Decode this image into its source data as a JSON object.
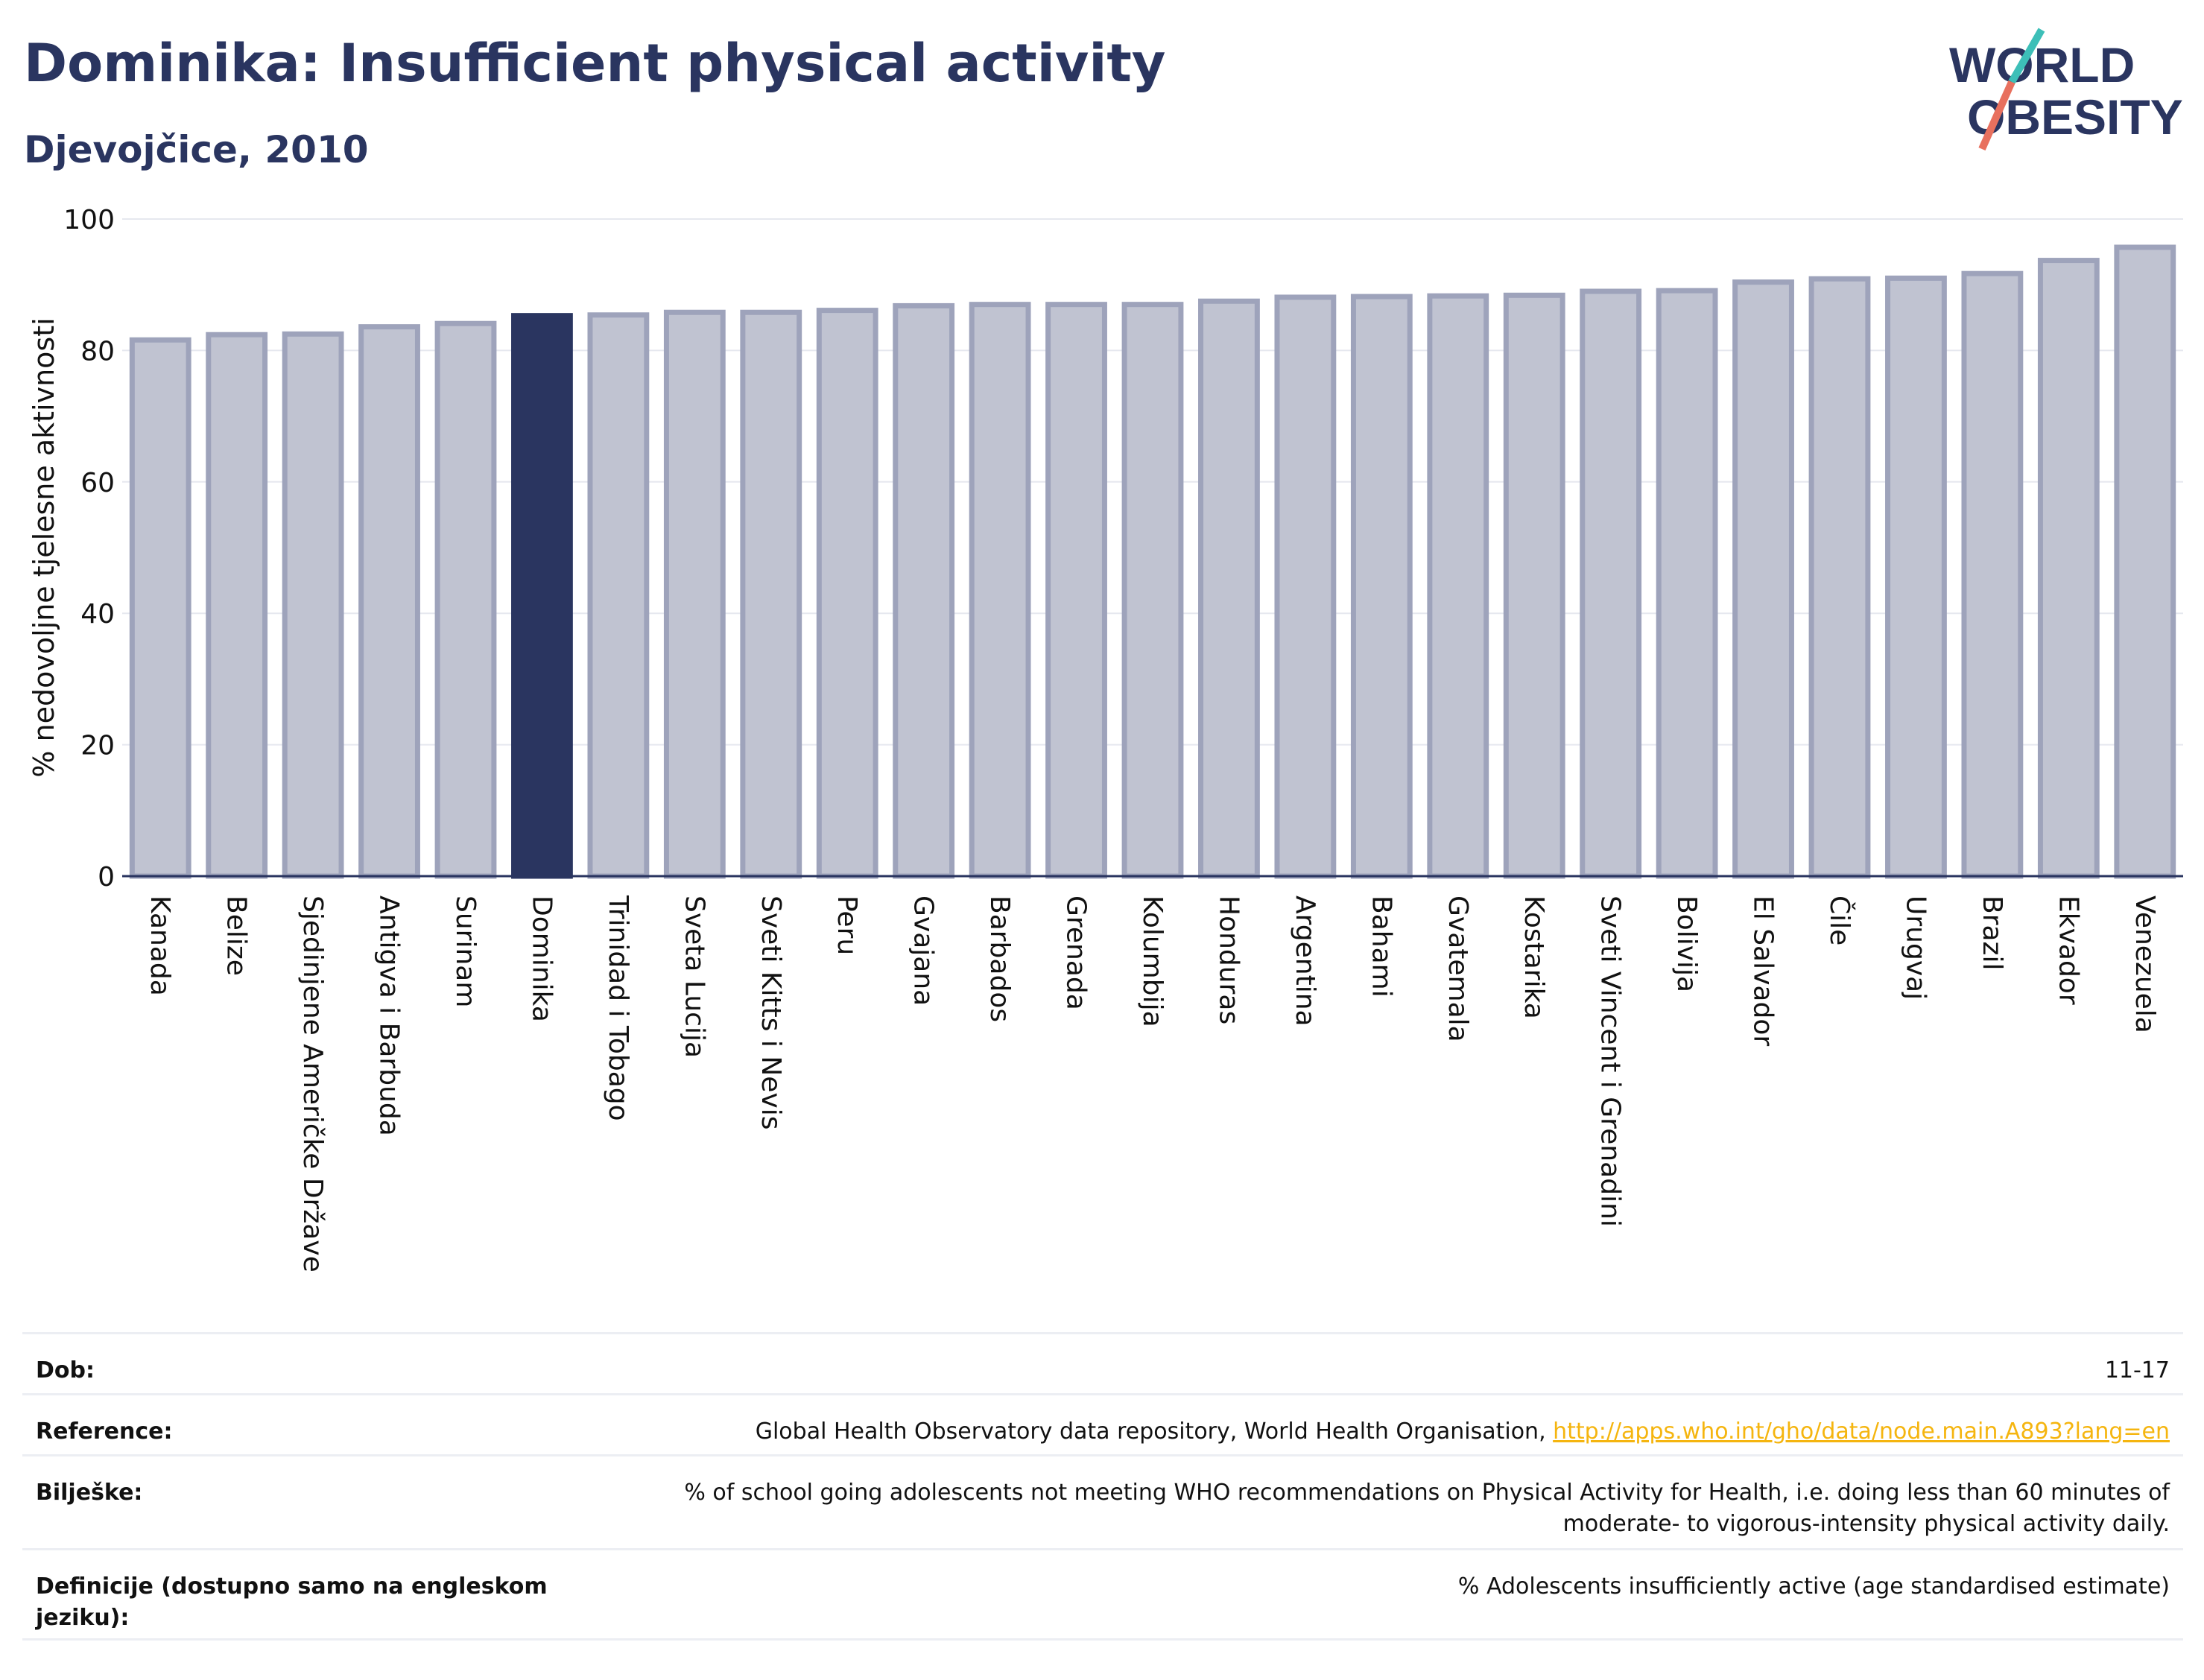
{
  "header": {
    "title": "Dominika: Insufficient physical activity",
    "subtitle": "Djevojčice, 2010"
  },
  "logo": {
    "line1": "WORLD",
    "line2": "OBESITY",
    "accent_color": "#3dbfb8",
    "slash_color": "#e8705e"
  },
  "colors": {
    "bar": "#c0c3d1",
    "bar_edge": "#9ea3bb",
    "highlight": "#2a3560",
    "text": "#2a3560"
  },
  "chart_data": {
    "type": "bar",
    "title": "Dominika: Insufficient physical activity",
    "subtitle": "Djevojčice, 2010",
    "ylabel": "% nedovoljne tjelesne aktivnosti",
    "ylim": [
      0,
      100
    ],
    "yticks": [
      0,
      20,
      40,
      60,
      80,
      100
    ],
    "grid": true,
    "highlight": "Dominika",
    "categories": [
      "Kanada",
      "Belize",
      "Sjedinjene Američke Države",
      "Antigva i Barbuda",
      "Surinam",
      "Dominika",
      "Trinidad i Tobago",
      "Sveta Lucija",
      "Sveti Kitts i Nevis",
      "Peru",
      "Gvajana",
      "Barbados",
      "Grenada",
      "Kolumbija",
      "Honduras",
      "Argentina",
      "Bahami",
      "Gvatemala",
      "Kostarika",
      "Sveti Vincent i Grenadini",
      "Bolivija",
      "El Salvador",
      "Čile",
      "Urugvaj",
      "Brazil",
      "Ekvador",
      "Venezuela"
    ],
    "values": [
      81.6,
      82.4,
      82.5,
      83.6,
      84.1,
      85.3,
      85.4,
      85.8,
      85.8,
      86.1,
      86.8,
      87.0,
      87.0,
      87.0,
      87.5,
      88.1,
      88.2,
      88.3,
      88.4,
      89.0,
      89.1,
      90.4,
      90.9,
      91.0,
      91.7,
      93.7,
      95.7
    ]
  },
  "meta": {
    "rows": [
      {
        "key": "Dob:",
        "value": "11-17"
      },
      {
        "key": "Reference:",
        "value": "Global Health Observatory data repository, World Health Organisation, ",
        "link": "http://apps.who.int/gho/data/node.main.A893?lang=en"
      },
      {
        "key": "Bilješke:",
        "value": "% of school going adolescents not meeting WHO recommendations on Physical Activity for Health, i.e. doing less than 60 minutes of moderate- to vigorous-intensity physical activity daily."
      },
      {
        "key": "Definicije (dostupno samo na engleskom jeziku):",
        "value": "% Adolescents insufficiently active (age standardised estimate)"
      }
    ]
  }
}
